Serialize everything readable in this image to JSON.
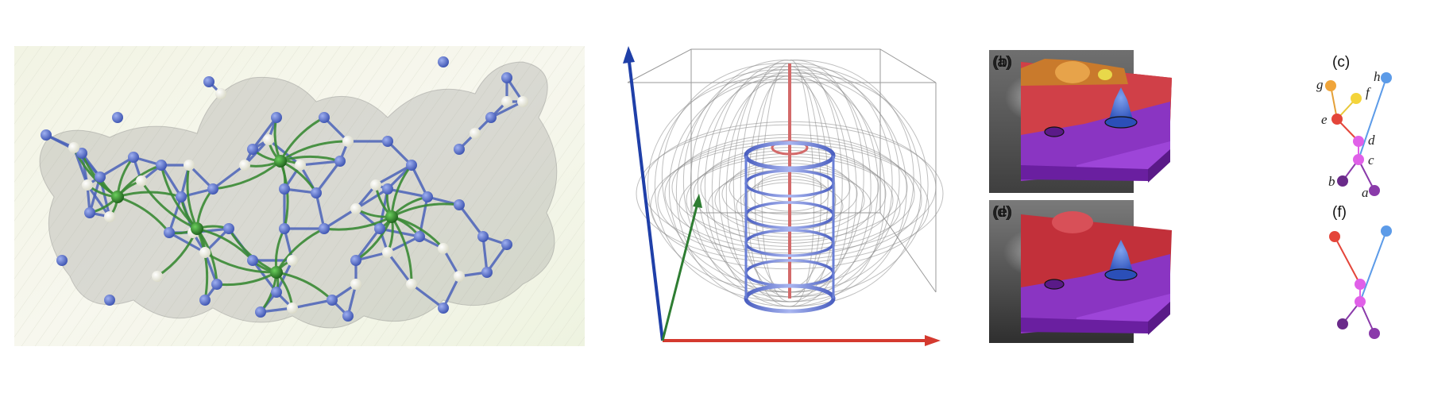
{
  "colors": {
    "bond_blue": "#4a62b8",
    "bond_green": "#3a8a34",
    "atom_blue": "#4a63c4",
    "atom_white": "#f3f3e6",
    "axis_x": "#d43a2f",
    "axis_y": "#2e7d32",
    "axis_z": "#1f3fa8",
    "coil": "#6a7fd6",
    "terrain_purple": "#8a35c2",
    "terrain_red": "#c2303a",
    "terrain_orange": "#d8872e",
    "terrain_blue": "#3f66c9"
  },
  "panels": [
    {
      "label": "(a)"
    },
    {
      "label": "(b)"
    },
    {
      "label": "(c)"
    },
    {
      "label": "(d)"
    },
    {
      "label": "(e)"
    },
    {
      "label": "(f)"
    }
  ],
  "tree_c": {
    "nodes": [
      {
        "label": "h",
        "color": "#5c9be8"
      },
      {
        "label": "g",
        "color": "#f0a53a"
      },
      {
        "label": "f",
        "color": "#f4d43a"
      },
      {
        "label": "e",
        "color": "#e4453a"
      },
      {
        "label": "d",
        "color": "#e060e8"
      },
      {
        "label": "c",
        "color": "#e060e8"
      },
      {
        "label": "b",
        "color": "#6a2a8a"
      },
      {
        "label": "a",
        "color": "#8a3aaa"
      }
    ]
  },
  "tree_f": {
    "nodes": [
      {
        "color": "#e4453a"
      },
      {
        "color": "#5c9be8"
      },
      {
        "color": "#e060e8"
      },
      {
        "color": "#e060e8"
      },
      {
        "color": "#6a2a8a"
      },
      {
        "color": "#8a3aaa"
      }
    ]
  }
}
